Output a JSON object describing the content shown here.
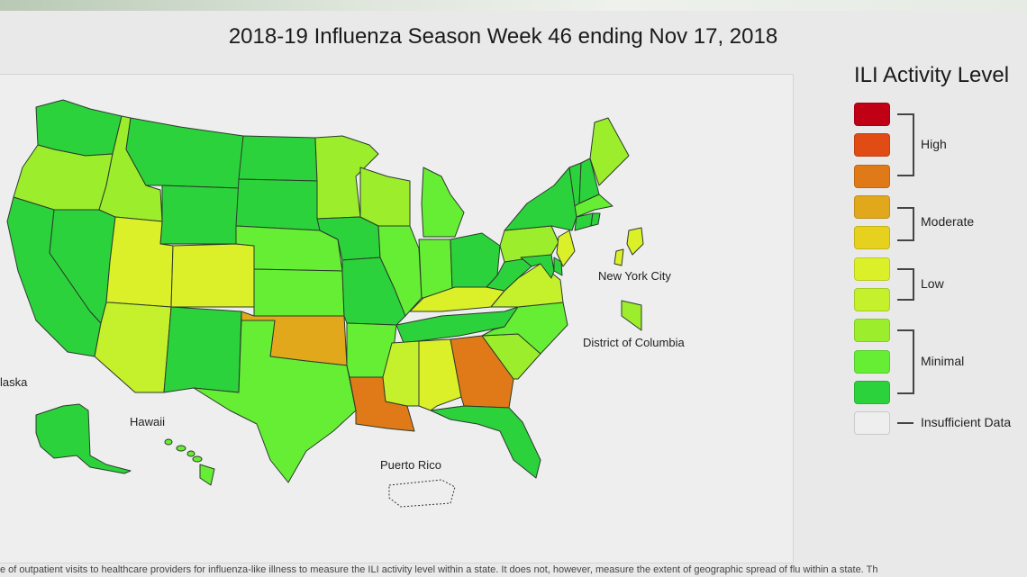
{
  "title": "2018-19 Influenza Season Week 46 ending Nov 17, 2018",
  "legend": {
    "title": "ILI Activity Level",
    "levels": [
      {
        "level": 10,
        "color": "#c00014"
      },
      {
        "level": 9,
        "color": "#e04c14"
      },
      {
        "level": 8,
        "color": "#e07a18"
      },
      {
        "level": 7,
        "color": "#e2a81c"
      },
      {
        "level": 6,
        "color": "#e6d21e"
      },
      {
        "level": 5,
        "color": "#dcf02a"
      },
      {
        "level": 4,
        "color": "#c4f02c"
      },
      {
        "level": 3,
        "color": "#9cee2c"
      },
      {
        "level": 2,
        "color": "#66ee34"
      },
      {
        "level": 1,
        "color": "#2cd23c"
      }
    ],
    "groups": [
      "High",
      "Moderate",
      "Low",
      "Minimal"
    ],
    "insufficient_data": "Insufficient Data",
    "insufficient_color": "#eeeeee"
  },
  "map_labels": {
    "alaska": "laska",
    "hawaii": "Hawaii",
    "puerto_rico": "Puerto Rico",
    "new_york_city": "New York City",
    "dc": "District of Columbia"
  },
  "footnote": "e of outpatient visits to healthcare providers for influenza-like illness to measure the ILI activity level within a state. It does not, however, measure the extent of geographic spread of flu within a state. Th",
  "state_levels": {
    "WA": 1,
    "OR": 3,
    "CA": 1,
    "NV": 1,
    "ID": 3,
    "MT": 1,
    "WY": 1,
    "UT": 5,
    "CO": 5,
    "AZ": 4,
    "NM": 1,
    "ND": 1,
    "SD": 1,
    "NE": 2,
    "KS": 2,
    "OK": 7,
    "TX": 2,
    "MN": 3,
    "IA": 1,
    "MO": 1,
    "AR": 2,
    "LA": 8,
    "WI": 3,
    "IL": 2,
    "MS": 4,
    "MI": 2,
    "IN": 2,
    "KY": 5,
    "TN": 1,
    "AL": 5,
    "OH": 1,
    "WV": 1,
    "VA": 4,
    "NC": 2,
    "SC": 3,
    "GA": 8,
    "FL": 1,
    "PA": 3,
    "NY": 1,
    "ME": 3,
    "NH": 1,
    "VT": 1,
    "MA": 2,
    "RI": 1,
    "CT": 1,
    "NJ": 5,
    "DE": 1,
    "MD": 1,
    "AK": 1,
    "HI": 2,
    "NYC": 5,
    "DC": 3,
    "PR": 0
  }
}
